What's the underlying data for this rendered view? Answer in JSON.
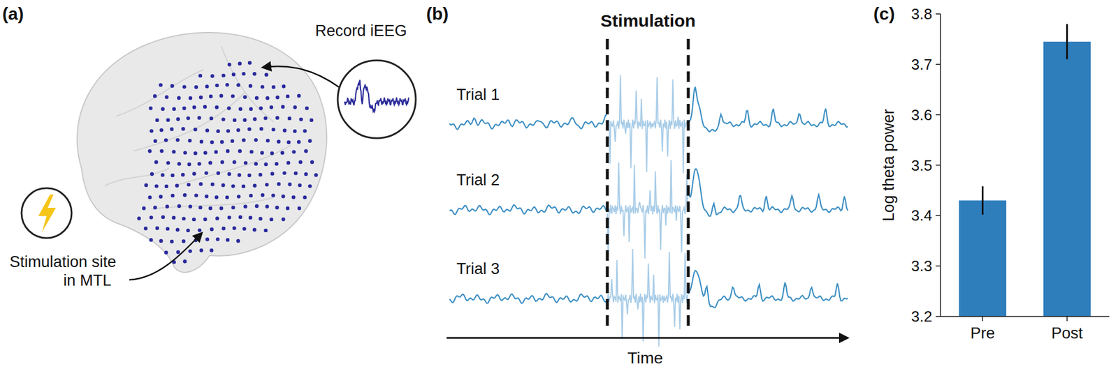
{
  "chart_data": {
    "type": "bar",
    "categories": [
      "Pre",
      "Post"
    ],
    "values": [
      3.43,
      3.745
    ],
    "errors": [
      0.028,
      0.035
    ],
    "color": "#2e7ebc",
    "ylabel": "Log theta power",
    "ylim": [
      3.2,
      3.8
    ],
    "yticks": [
      3.2,
      3.3,
      3.4,
      3.5,
      3.6,
      3.7,
      3.8
    ]
  },
  "figure": {
    "panel_labels": [
      "(a)",
      "(b)",
      "(c)"
    ],
    "record_label": "Record iEEG",
    "stimulation_site_label": [
      "Stimulation site",
      "in MTL"
    ],
    "stimulation_label": "Stimulation",
    "trial_labels": [
      "Trial 1",
      "Trial 2",
      "Trial 3"
    ],
    "time_label": "Time"
  }
}
